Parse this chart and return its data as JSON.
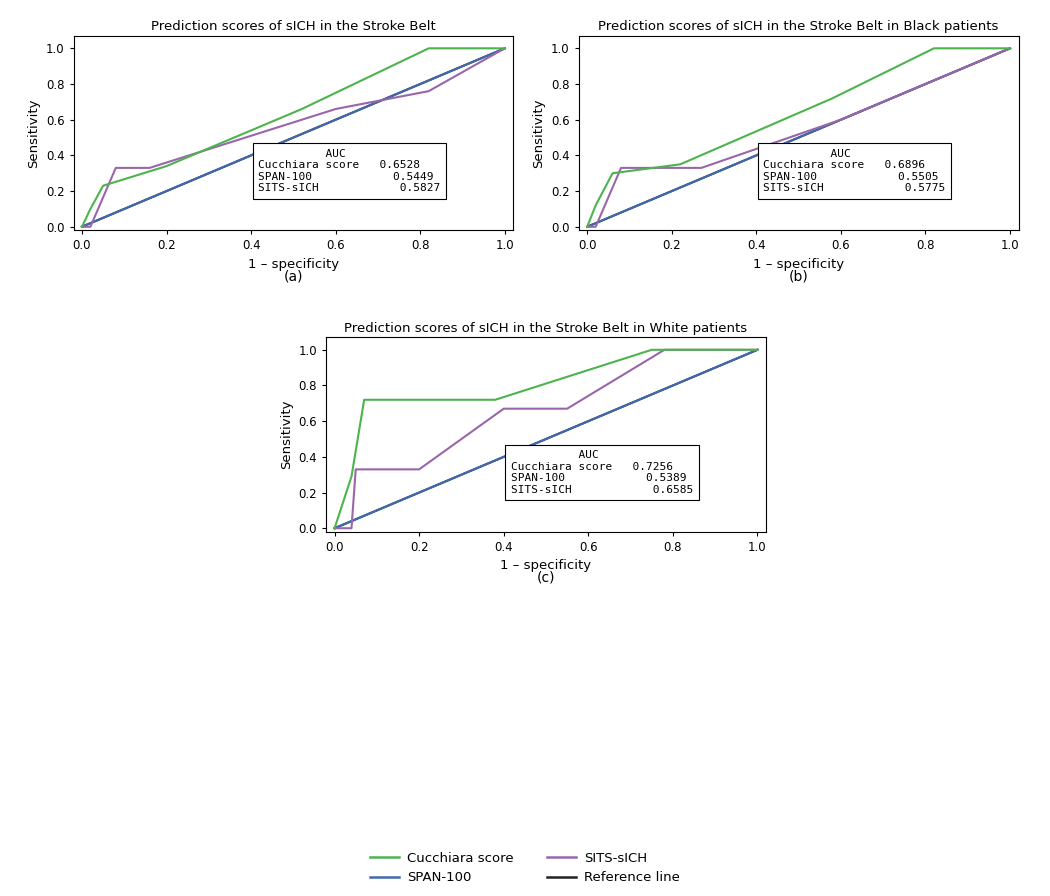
{
  "plots": [
    {
      "title": "Prediction scores of sICH in the Stroke Belt",
      "label": "(a)",
      "auc": {
        "Cucchiara score": "0.6528",
        "SPAN-100": "0.5449",
        "SITS-sICH": "0.5827"
      },
      "cucchiara": {
        "x": [
          0.0,
          0.02,
          0.05,
          0.2,
          0.52,
          0.82,
          1.0
        ],
        "y": [
          0.0,
          0.1,
          0.23,
          0.34,
          0.66,
          1.0,
          1.0
        ]
      },
      "span100": {
        "x": [
          0.0,
          0.04,
          0.55,
          1.0
        ],
        "y": [
          0.0,
          0.04,
          0.55,
          1.0
        ]
      },
      "sits": {
        "x": [
          0.0,
          0.02,
          0.08,
          0.16,
          0.6,
          0.82,
          1.0
        ],
        "y": [
          0.0,
          0.0,
          0.33,
          0.33,
          0.66,
          0.76,
          1.0
        ]
      }
    },
    {
      "title": "Prediction scores of sICH in the Stroke Belt in Black patients",
      "label": "(b)",
      "auc": {
        "Cucchiara score": "0.6896",
        "SPAN-100": "0.5505",
        "SITS-sICH": "0.5775"
      },
      "cucchiara": {
        "x": [
          0.0,
          0.02,
          0.06,
          0.22,
          0.58,
          0.82,
          1.0
        ],
        "y": [
          0.0,
          0.12,
          0.3,
          0.35,
          0.72,
          1.0,
          1.0
        ]
      },
      "span100": {
        "x": [
          0.0,
          0.04,
          0.55,
          1.0
        ],
        "y": [
          0.0,
          0.04,
          0.55,
          1.0
        ]
      },
      "sits": {
        "x": [
          0.0,
          0.02,
          0.08,
          0.27,
          0.6,
          0.82,
          1.0
        ],
        "y": [
          0.0,
          0.0,
          0.33,
          0.33,
          0.6,
          0.82,
          1.0
        ]
      }
    },
    {
      "title": "Prediction scores of sICH in the Stroke Belt in White patients",
      "label": "(c)",
      "auc": {
        "Cucchiara score": "0.7256",
        "SPAN-100": "0.5389",
        "SITS-sICH": "0.6585"
      },
      "cucchiara": {
        "x": [
          0.0,
          0.04,
          0.07,
          0.38,
          0.75,
          1.0
        ],
        "y": [
          0.0,
          0.29,
          0.72,
          0.72,
          1.0,
          1.0
        ]
      },
      "span100": {
        "x": [
          0.0,
          0.04,
          0.55,
          1.0
        ],
        "y": [
          0.0,
          0.04,
          0.55,
          1.0
        ]
      },
      "sits": {
        "x": [
          0.0,
          0.04,
          0.05,
          0.2,
          0.4,
          0.55,
          0.78,
          1.0
        ],
        "y": [
          0.0,
          0.0,
          0.33,
          0.33,
          0.67,
          0.67,
          1.0,
          1.0
        ]
      }
    }
  ],
  "colors": {
    "cucchiara": "#4db34d",
    "span100": "#4169b0",
    "sits": "#9966aa",
    "reference": "#222222"
  },
  "figsize": [
    10.5,
    8.96
  ],
  "dpi": 100
}
